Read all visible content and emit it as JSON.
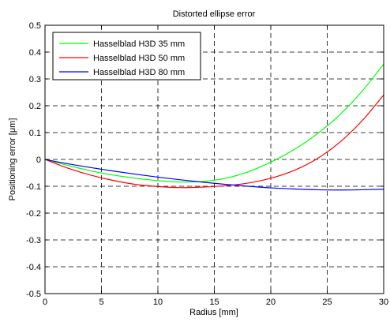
{
  "chart_data": {
    "type": "line",
    "title": "Distorted ellipse error",
    "xlabel": "Radius [mm]",
    "ylabel": "Positioning error [μm]",
    "xlim": [
      0,
      30
    ],
    "ylim": [
      -0.5,
      0.5
    ],
    "xticks": [
      0,
      5,
      10,
      15,
      20,
      25,
      30
    ],
    "yticks": [
      -0.5,
      -0.4,
      -0.3,
      -0.2,
      -0.1,
      0,
      0.1,
      0.2,
      0.3,
      0.4,
      0.5
    ],
    "grid": true,
    "legend_position": "top-left",
    "series": [
      {
        "name": "Hasselblad H3D 35 mm",
        "color": "#00ff00",
        "x": [
          0,
          2,
          4,
          6,
          8,
          10,
          12,
          14,
          16,
          18,
          20,
          22,
          24,
          26,
          28,
          30
        ],
        "y": [
          0,
          -0.022,
          -0.042,
          -0.058,
          -0.07,
          -0.079,
          -0.084,
          -0.082,
          -0.07,
          -0.046,
          -0.01,
          0.035,
          0.092,
          0.162,
          0.25,
          0.355
        ]
      },
      {
        "name": "Hasselblad H3D 50 mm",
        "color": "#ff0000",
        "x": [
          0,
          2,
          4,
          6,
          8,
          10,
          12,
          14,
          16,
          18,
          20,
          22,
          24,
          26,
          28,
          30
        ],
        "y": [
          0,
          -0.032,
          -0.058,
          -0.078,
          -0.093,
          -0.101,
          -0.105,
          -0.103,
          -0.098,
          -0.088,
          -0.07,
          -0.042,
          0.0,
          0.06,
          0.14,
          0.24
        ]
      },
      {
        "name": "Hasselblad H3D 80 mm",
        "color": "#0000ff",
        "x": [
          0,
          2,
          4,
          6,
          8,
          10,
          12,
          14,
          16,
          18,
          20,
          22,
          24,
          26,
          28,
          30
        ],
        "y": [
          0,
          -0.016,
          -0.03,
          -0.043,
          -0.055,
          -0.066,
          -0.076,
          -0.085,
          -0.093,
          -0.1,
          -0.106,
          -0.11,
          -0.113,
          -0.114,
          -0.113,
          -0.111
        ]
      }
    ]
  }
}
